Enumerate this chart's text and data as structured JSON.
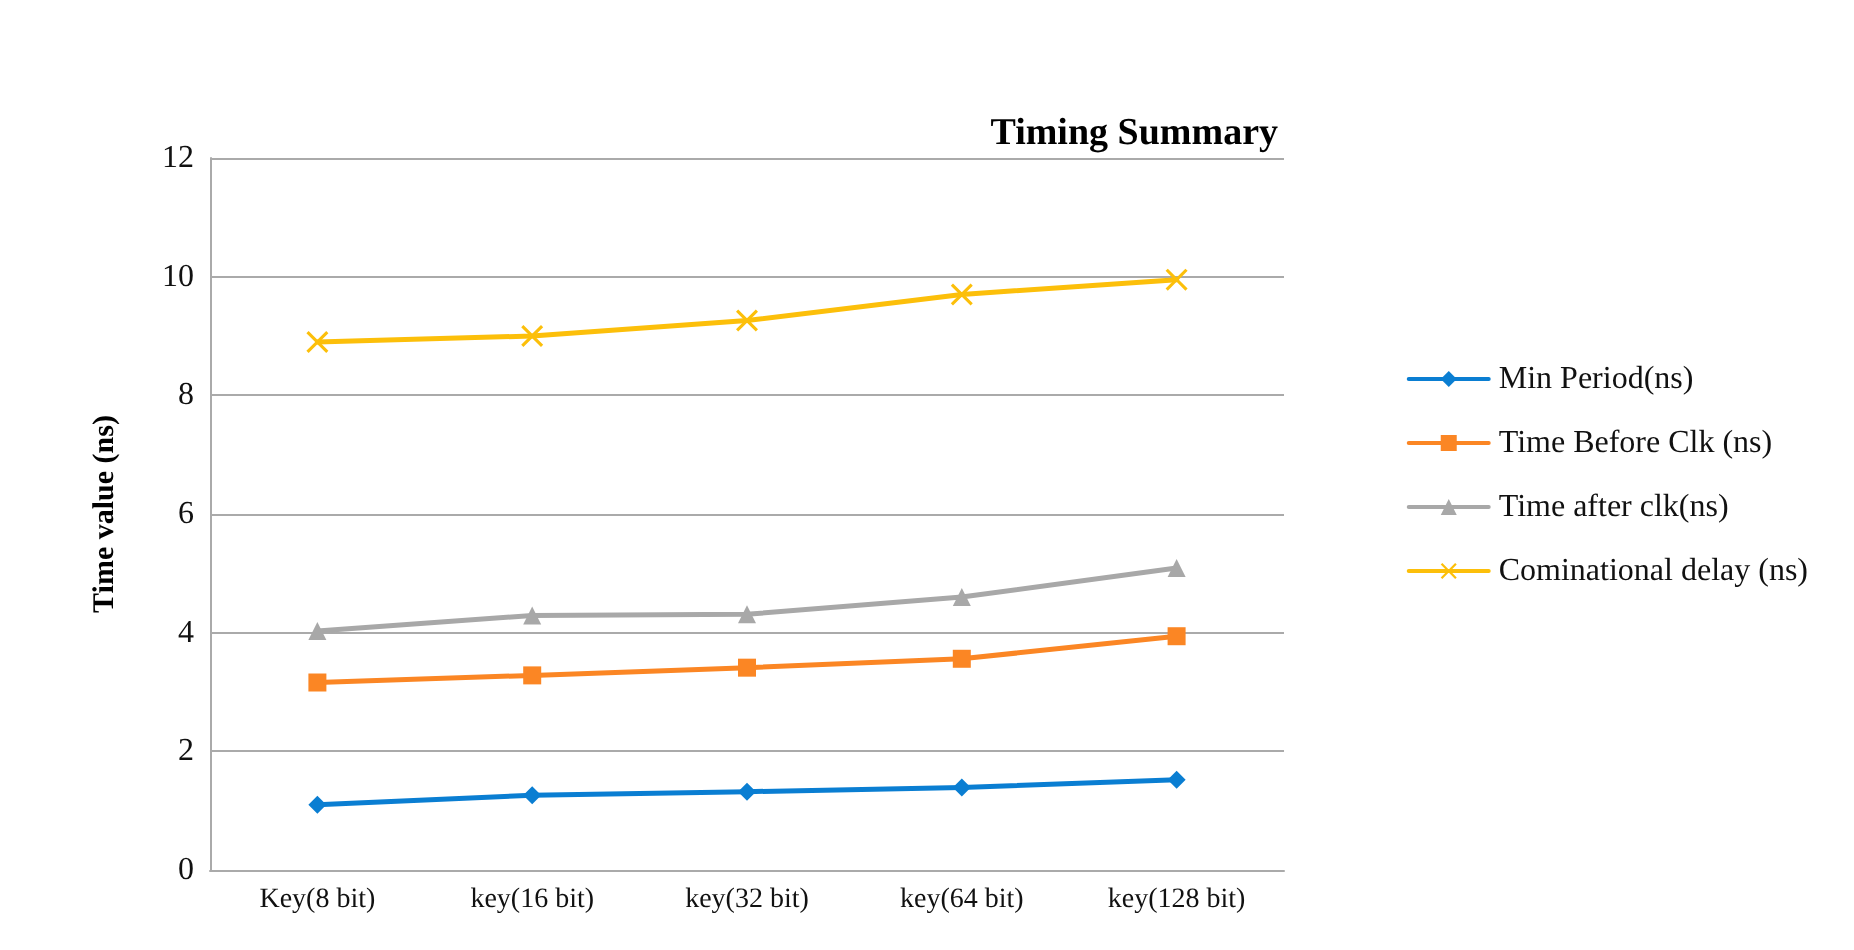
{
  "chart_data": {
    "type": "line",
    "title": "Timing Summary",
    "ylabel": "Time value (ns)",
    "categories": [
      "Key(8 bit)",
      "key(16 bit)",
      "key(32 bit)",
      "key(64 bit)",
      "key(128 bit)"
    ],
    "series": [
      {
        "name": "Min Period(ns)",
        "color": "#0a7ed2",
        "marker": "diamond",
        "values": [
          1.1,
          1.26,
          1.32,
          1.39,
          1.52
        ]
      },
      {
        "name": "Time Before Clk (ns)",
        "color": "#fb8624",
        "marker": "square",
        "values": [
          3.16,
          3.28,
          3.41,
          3.56,
          3.94
        ]
      },
      {
        "name": "Time after clk(ns)",
        "color": "#a8a8a8",
        "marker": "triangle",
        "values": [
          4.03,
          4.29,
          4.31,
          4.6,
          5.09
        ]
      },
      {
        "name": "Cominational delay (ns)",
        "color": "#fcbf0a",
        "marker": "cross",
        "values": [
          8.9,
          9.0,
          9.26,
          9.7,
          9.95
        ]
      }
    ],
    "ylim": [
      0,
      12
    ],
    "yticks": [
      0,
      2,
      4,
      6,
      8,
      10,
      12
    ],
    "grid": "y",
    "legend": "right",
    "line_style": "solid"
  }
}
